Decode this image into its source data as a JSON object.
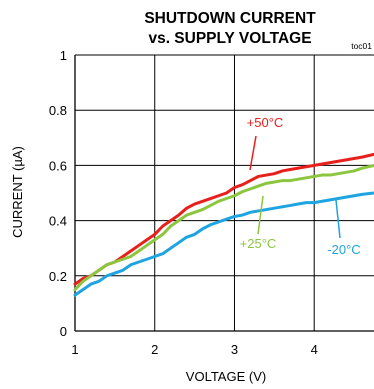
{
  "chart_data": {
    "type": "line",
    "title": "SHUTDOWN CURRENT",
    "subtitle": "vs. SUPPLY VOLTAGE",
    "figure_code": "toc01",
    "xlabel": "VOLTAGE (V)",
    "ylabel": "CURRENT (µA)",
    "xlim": [
      1,
      4.75
    ],
    "ylim": [
      0,
      1
    ],
    "x_ticks": [
      "1",
      "2",
      "3",
      "4"
    ],
    "y_ticks": [
      "0",
      "0.2",
      "0.4",
      "0.6",
      "0.8",
      "1"
    ],
    "grid": true,
    "series": [
      {
        "name": "+50°C",
        "color": "#e8201c",
        "x": [
          1.0,
          1.1,
          1.2,
          1.3,
          1.4,
          1.5,
          1.6,
          1.7,
          1.8,
          1.9,
          2.0,
          2.1,
          2.2,
          2.3,
          2.4,
          2.5,
          2.6,
          2.7,
          2.8,
          2.9,
          3.0,
          3.1,
          3.2,
          3.3,
          3.4,
          3.5,
          3.6,
          3.7,
          3.8,
          3.9,
          4.0,
          4.1,
          4.2,
          4.3,
          4.4,
          4.5,
          4.6,
          4.75
        ],
        "y": [
          0.17,
          0.19,
          0.2,
          0.22,
          0.24,
          0.25,
          0.27,
          0.29,
          0.31,
          0.33,
          0.35,
          0.38,
          0.4,
          0.42,
          0.445,
          0.46,
          0.47,
          0.48,
          0.49,
          0.5,
          0.52,
          0.53,
          0.545,
          0.56,
          0.565,
          0.57,
          0.58,
          0.585,
          0.59,
          0.595,
          0.6,
          0.605,
          0.61,
          0.615,
          0.62,
          0.625,
          0.63,
          0.64
        ]
      },
      {
        "name": "+25°C",
        "color": "#8cc63f",
        "x": [
          1.0,
          1.1,
          1.2,
          1.3,
          1.4,
          1.5,
          1.6,
          1.7,
          1.8,
          1.9,
          2.0,
          2.1,
          2.2,
          2.3,
          2.4,
          2.5,
          2.6,
          2.7,
          2.8,
          2.9,
          3.0,
          3.1,
          3.2,
          3.3,
          3.4,
          3.5,
          3.6,
          3.7,
          3.8,
          3.9,
          4.0,
          4.1,
          4.2,
          4.3,
          4.4,
          4.5,
          4.6,
          4.75
        ],
        "y": [
          0.15,
          0.18,
          0.2,
          0.22,
          0.24,
          0.25,
          0.26,
          0.27,
          0.29,
          0.31,
          0.33,
          0.35,
          0.38,
          0.4,
          0.42,
          0.43,
          0.44,
          0.455,
          0.47,
          0.48,
          0.49,
          0.505,
          0.515,
          0.525,
          0.535,
          0.54,
          0.545,
          0.545,
          0.55,
          0.555,
          0.56,
          0.565,
          0.565,
          0.57,
          0.575,
          0.58,
          0.59,
          0.6
        ]
      },
      {
        "name": "-20°C",
        "color": "#1ea4e0",
        "x": [
          1.0,
          1.1,
          1.2,
          1.3,
          1.4,
          1.5,
          1.6,
          1.7,
          1.8,
          1.9,
          2.0,
          2.1,
          2.2,
          2.3,
          2.4,
          2.5,
          2.6,
          2.7,
          2.8,
          2.9,
          3.0,
          3.1,
          3.2,
          3.3,
          3.4,
          3.5,
          3.6,
          3.7,
          3.8,
          3.9,
          4.0,
          4.1,
          4.2,
          4.3,
          4.4,
          4.5,
          4.6,
          4.75
        ],
        "y": [
          0.13,
          0.15,
          0.17,
          0.18,
          0.2,
          0.21,
          0.22,
          0.24,
          0.25,
          0.26,
          0.27,
          0.28,
          0.3,
          0.32,
          0.34,
          0.35,
          0.37,
          0.385,
          0.395,
          0.405,
          0.415,
          0.42,
          0.43,
          0.435,
          0.44,
          0.445,
          0.45,
          0.455,
          0.46,
          0.465,
          0.465,
          0.47,
          0.475,
          0.48,
          0.485,
          0.49,
          0.495,
          0.5
        ]
      }
    ]
  }
}
